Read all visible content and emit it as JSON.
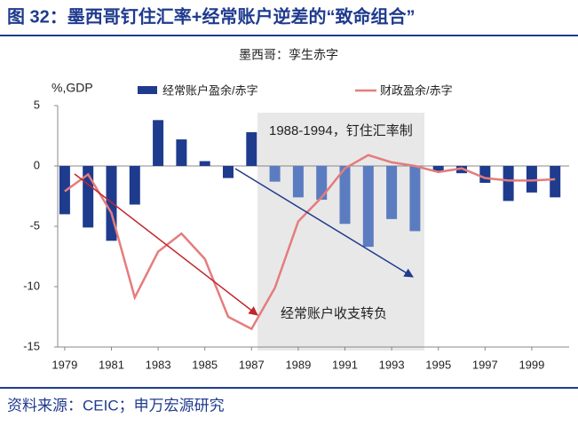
{
  "chart_data": {
    "type": "bar-line",
    "title": "图 32：墨西哥钉住汇率+经常账户逆差的“致命组合”",
    "subtitle": "墨西哥：孪生赤字",
    "y_label": "%,GDP",
    "source": "资料来源：CEIC；申万宏源研究",
    "annotations": [
      "1988-1994，钉住汇率制",
      "经常账户收支转负"
    ],
    "x": [
      1979,
      1980,
      1981,
      1982,
      1983,
      1984,
      1985,
      1986,
      1987,
      1988,
      1989,
      1990,
      1991,
      1992,
      1993,
      1994,
      1995,
      1996,
      1997,
      1998,
      1999,
      2000
    ],
    "xlim": [
      1978.7,
      2000.6
    ],
    "xticks": [
      1979,
      1981,
      1983,
      1985,
      1987,
      1989,
      1991,
      1993,
      1995,
      1997,
      1999
    ],
    "ylim": [
      -15,
      5
    ],
    "yticks": [
      -15,
      -10,
      -5,
      0,
      5
    ],
    "series": [
      {
        "name": "经常账户盈余/赤字",
        "type": "bar",
        "color": "#1f3b8e",
        "colors": [
          "#1f3b8e",
          "#1f3b8e",
          "#1f3b8e",
          "#1f3b8e",
          "#1f3b8e",
          "#1f3b8e",
          "#1f3b8e",
          "#1f3b8e",
          "#1f3b8e",
          "#5b7cc0",
          "#5b7cc0",
          "#5b7cc0",
          "#5b7cc0",
          "#5b7cc0",
          "#5b7cc0",
          "#5b7cc0",
          "#1f3b8e",
          "#1f3b8e",
          "#1f3b8e",
          "#1f3b8e",
          "#1f3b8e",
          "#1f3b8e"
        ],
        "values": [
          -4.0,
          -5.1,
          -6.2,
          -3.2,
          3.8,
          2.2,
          0.4,
          -1.0,
          2.8,
          -1.3,
          -2.6,
          -2.8,
          -4.8,
          -6.7,
          -4.4,
          -5.4,
          -0.4,
          -0.6,
          -1.4,
          -2.9,
          -2.2,
          -2.6
        ]
      },
      {
        "name": "财政盈余/赤字",
        "type": "line",
        "color": "#e57c7c",
        "values": [
          -2.1,
          -0.7,
          -3.9,
          -10.9,
          -7.1,
          -5.6,
          -7.7,
          -12.5,
          -13.5,
          -10.1,
          -4.6,
          -2.6,
          -0.2,
          0.9,
          0.3,
          0.0,
          -0.5,
          -0.2,
          -1.0,
          -1.2,
          -1.2,
          -1.1
        ]
      }
    ]
  }
}
